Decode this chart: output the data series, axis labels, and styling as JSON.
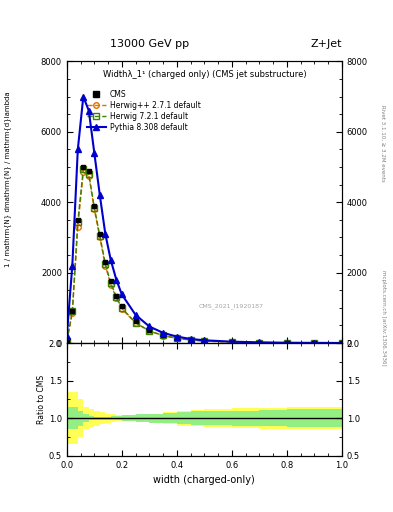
{
  "title_top": "13000 GeV pp",
  "title_right": "Z+Jet",
  "plot_title": "Widthλ_1¹ (charged only) (CMS jet substructure)",
  "xlabel": "width (charged-only)",
  "ylabel_ratio": "Ratio to CMS",
  "right_label_top": "Rivet 3.1.10, ≥ 3.2M events",
  "right_label_bottom": "mcplots.cern.ch [arXiv:1306.3436]",
  "watermark": "CMS_2021_I1920187",
  "xlim": [
    0.0,
    1.0
  ],
  "main_ylim": [
    0,
    8000
  ],
  "main_yticks": [
    0,
    2000,
    4000,
    6000,
    8000
  ],
  "ratio_ylim": [
    0.5,
    2.0
  ],
  "ratio_yticks": [
    0.5,
    1.0,
    1.5,
    2.0
  ],
  "cms_x": [
    0.0,
    0.02,
    0.04,
    0.06,
    0.08,
    0.1,
    0.12,
    0.14,
    0.16,
    0.18,
    0.2,
    0.25,
    0.3,
    0.35,
    0.4,
    0.45,
    0.5,
    0.6,
    0.7,
    0.8,
    0.9,
    1.0
  ],
  "cms_y": [
    50,
    900,
    3500,
    5000,
    4900,
    3900,
    3100,
    2300,
    1750,
    1350,
    1050,
    620,
    370,
    230,
    145,
    92,
    62,
    31,
    15,
    8,
    4,
    2
  ],
  "herwig_pp_x": [
    0.0,
    0.02,
    0.04,
    0.06,
    0.08,
    0.1,
    0.12,
    0.14,
    0.16,
    0.18,
    0.2,
    0.25,
    0.3,
    0.35,
    0.4,
    0.45,
    0.5,
    0.6,
    0.7,
    0.8,
    0.9,
    1.0
  ],
  "herwig_pp_y": [
    50,
    850,
    3300,
    4850,
    4750,
    3800,
    3000,
    2200,
    1650,
    1280,
    970,
    570,
    340,
    210,
    133,
    84,
    56,
    28,
    13,
    6,
    3,
    1
  ],
  "herwig72_x": [
    0.0,
    0.02,
    0.04,
    0.06,
    0.08,
    0.1,
    0.12,
    0.14,
    0.16,
    0.18,
    0.2,
    0.25,
    0.3,
    0.35,
    0.4,
    0.45,
    0.5,
    0.6,
    0.7,
    0.8,
    0.9,
    1.0
  ],
  "herwig72_y": [
    60,
    900,
    3450,
    4950,
    4800,
    3850,
    3050,
    2250,
    1700,
    1310,
    990,
    580,
    345,
    215,
    137,
    87,
    58,
    29,
    14,
    7,
    3.5,
    1.5
  ],
  "pythia_x": [
    0.0,
    0.02,
    0.04,
    0.06,
    0.08,
    0.1,
    0.12,
    0.14,
    0.16,
    0.18,
    0.2,
    0.25,
    0.3,
    0.35,
    0.4,
    0.45,
    0.5,
    0.6,
    0.7,
    0.8,
    0.9,
    1.0
  ],
  "pythia_y": [
    200,
    2200,
    5500,
    7000,
    6600,
    5400,
    4200,
    3100,
    2350,
    1800,
    1380,
    800,
    470,
    290,
    183,
    116,
    78,
    39,
    19,
    9,
    5,
    2
  ],
  "cms_color": "#000000",
  "herwig_pp_color": "#E07000",
  "herwig72_color": "#408000",
  "pythia_color": "#0000CC",
  "ratio_fill_yellow": "#FFFF44",
  "ratio_fill_green": "#88EE88",
  "ratio_yellow_upper": [
    1.35,
    1.35,
    1.25,
    1.15,
    1.12,
    1.1,
    1.08,
    1.06,
    1.05,
    1.04,
    1.04,
    1.04,
    1.06,
    1.08,
    1.1,
    1.11,
    1.12,
    1.13,
    1.14,
    1.15,
    1.15,
    1.15
  ],
  "ratio_yellow_lower": [
    0.65,
    0.65,
    0.75,
    0.85,
    0.88,
    0.9,
    0.92,
    0.94,
    0.95,
    0.96,
    0.96,
    0.96,
    0.94,
    0.92,
    0.9,
    0.89,
    0.88,
    0.87,
    0.86,
    0.85,
    0.85,
    0.85
  ],
  "ratio_green_upper": [
    1.15,
    1.15,
    1.1,
    1.05,
    1.03,
    1.02,
    1.02,
    1.02,
    1.03,
    1.03,
    1.04,
    1.05,
    1.06,
    1.07,
    1.08,
    1.09,
    1.09,
    1.1,
    1.11,
    1.12,
    1.12,
    1.12
  ],
  "ratio_green_lower": [
    0.85,
    0.85,
    0.9,
    0.95,
    0.97,
    0.98,
    0.98,
    0.98,
    0.97,
    0.97,
    0.96,
    0.95,
    0.94,
    0.93,
    0.92,
    0.91,
    0.91,
    0.9,
    0.89,
    0.88,
    0.88,
    0.88
  ]
}
